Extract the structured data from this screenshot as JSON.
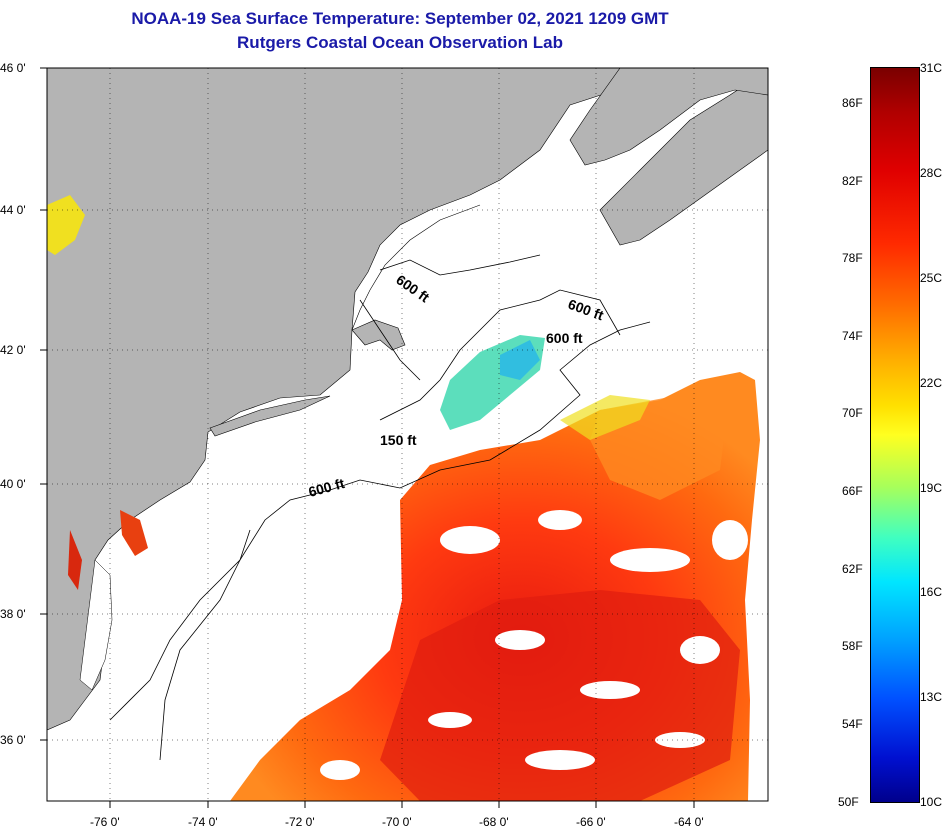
{
  "header": {
    "title": "NOAA-19 Sea Surface Temperature:  September 02, 2021 1209 GMT",
    "subtitle": "Rutgers Coastal Ocean Observation Lab"
  },
  "map": {
    "lat_labels": [
      "46 0'",
      "44 0'",
      "42 0'",
      "40 0'",
      "38 0'",
      "36 0'"
    ],
    "lon_labels": [
      "-76 0'",
      "-74 0'",
      "-72 0'",
      "-70 0'",
      "-68 0'",
      "-66 0'",
      "-64 0'"
    ],
    "lat_range": [
      35,
      46
    ],
    "lon_range": [
      -77,
      -62.5
    ],
    "land_color": "#b4b4b4",
    "water_color": "#ffffff",
    "contours": [
      {
        "label": "600 ft"
      },
      {
        "label": "600 ft"
      },
      {
        "label": "600 ft"
      },
      {
        "label": "150 ft"
      },
      {
        "label": "600 ft"
      }
    ]
  },
  "colorbar": {
    "fahrenheit": [
      "86F",
      "82F",
      "78F",
      "74F",
      "70F",
      "66F",
      "62F",
      "58F",
      "54F",
      "50F"
    ],
    "celsius": [
      "31C",
      "28C",
      "25C",
      "22C",
      "19C",
      "16C",
      "13C",
      "10C"
    ],
    "range_c": [
      10,
      31
    ],
    "range_f": [
      50,
      88
    ]
  }
}
